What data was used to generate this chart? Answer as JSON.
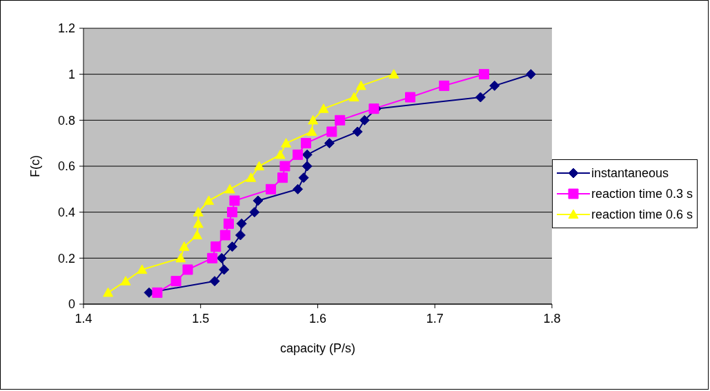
{
  "chart_data": {
    "type": "line",
    "xlabel": "capacity (P/s)",
    "ylabel": "F(c)",
    "xlim": [
      1.4,
      1.8
    ],
    "xticks": [
      1.4,
      1.5,
      1.6,
      1.7,
      1.8
    ],
    "ylim": [
      0,
      1.2
    ],
    "yticks": [
      0,
      0.2,
      0.4,
      0.6,
      0.8,
      1,
      1.2
    ],
    "grid": "y",
    "legend": "right",
    "line_style": "solid",
    "series": [
      {
        "name": "instantaneous",
        "color": "#000080",
        "marker": "diamond",
        "x": [
          1.456,
          1.512,
          1.52,
          1.518,
          1.527,
          1.534,
          1.535,
          1.546,
          1.549,
          1.583,
          1.588,
          1.591,
          1.591,
          1.61,
          1.634,
          1.64,
          1.65,
          1.739,
          1.751,
          1.782
        ],
        "values": [
          0.05,
          0.1,
          0.15,
          0.2,
          0.25,
          0.3,
          0.35,
          0.4,
          0.45,
          0.5,
          0.55,
          0.6,
          0.65,
          0.7,
          0.75,
          0.8,
          0.85,
          0.9,
          0.95,
          1
        ]
      },
      {
        "name": "reaction time 0.3 s",
        "color": "#ff00ff",
        "marker": "square",
        "x": [
          1.463,
          1.479,
          1.489,
          1.51,
          1.513,
          1.521,
          1.524,
          1.527,
          1.529,
          1.56,
          1.57,
          1.572,
          1.583,
          1.59,
          1.612,
          1.619,
          1.648,
          1.679,
          1.708,
          1.742
        ],
        "values": [
          0.05,
          0.1,
          0.15,
          0.2,
          0.25,
          0.3,
          0.35,
          0.4,
          0.45,
          0.5,
          0.55,
          0.6,
          0.65,
          0.7,
          0.75,
          0.8,
          0.85,
          0.9,
          0.95,
          1
        ]
      },
      {
        "name": "reaction time 0.6 s",
        "color": "#ffff00",
        "marker": "triangle",
        "x": [
          1.421,
          1.436,
          1.45,
          1.483,
          1.486,
          1.497,
          1.498,
          1.498,
          1.507,
          1.525,
          1.543,
          1.55,
          1.568,
          1.573,
          1.595,
          1.596,
          1.605,
          1.631,
          1.637,
          1.665
        ],
        "values": [
          0.05,
          0.1,
          0.15,
          0.2,
          0.25,
          0.3,
          0.35,
          0.4,
          0.45,
          0.5,
          0.55,
          0.6,
          0.65,
          0.7,
          0.75,
          0.8,
          0.85,
          0.9,
          0.95,
          1
        ]
      }
    ]
  }
}
